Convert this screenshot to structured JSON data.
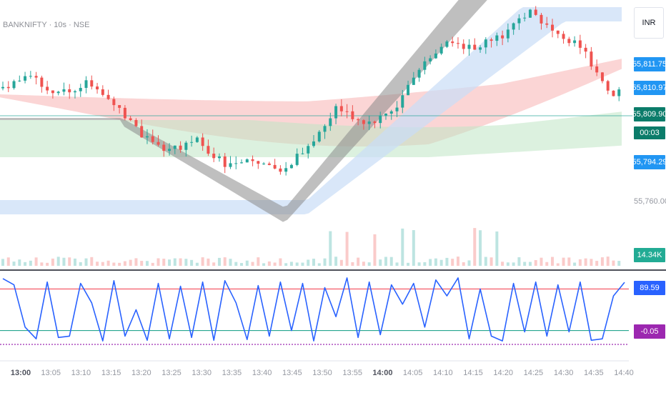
{
  "header": {
    "title": "BANKNIFTY · 10s · NSE"
  },
  "currency": "INR",
  "price_labels": [
    {
      "text": "55,811.75",
      "bg": "#2196f3"
    },
    {
      "text": "55,810.97",
      "bg": "#2196f3"
    },
    {
      "text": "55,809.90",
      "bg": "#0b7c6a"
    },
    {
      "text": "00:03",
      "bg": "#0b7c6a"
    },
    {
      "text": "55,794.29",
      "bg": "#2196f3"
    }
  ],
  "price_scale_text": "55,760.00",
  "volume_label": {
    "text": "14.34K",
    "bg": "#22ab94"
  },
  "osc_labels": [
    {
      "text": "89.59",
      "bg": "#2962ff"
    },
    {
      "text": "-0.05",
      "bg": "#9c27b0"
    }
  ],
  "time_axis": [
    "13:00",
    "13:05",
    "13:10",
    "13:15",
    "13:20",
    "13:25",
    "13:30",
    "13:35",
    "13:40",
    "13:45",
    "13:50",
    "13:55",
    "14:00",
    "14:05",
    "14:10",
    "14:15",
    "14:20",
    "14:25",
    "14:30",
    "14:35",
    "14:40"
  ],
  "colors": {
    "up": "#26a69a",
    "down": "#ef5350",
    "osc_line": "#2962ff",
    "overbought": "#f23645",
    "oversold": "#089981",
    "band_red": "#f7b3b3",
    "band_green": "#bfe5c5",
    "band_blue": "#c9ddf7",
    "band_grey": "#8a8a8a"
  },
  "chart_data": {
    "type": "candlestick",
    "symbol": "BANKNIFTY",
    "interval": "10s",
    "exchange": "NSE",
    "ylim": [
      55740,
      55830
    ],
    "last_price": 55809.9,
    "close_path": [
      [
        0,
        55802
      ],
      [
        5,
        55806
      ],
      [
        10,
        55800
      ],
      [
        15,
        55804
      ],
      [
        20,
        55796
      ],
      [
        25,
        55786
      ],
      [
        30,
        55780
      ],
      [
        35,
        55784
      ],
      [
        40,
        55776
      ],
      [
        45,
        55778
      ],
      [
        50,
        55772
      ],
      [
        55,
        55782
      ],
      [
        60,
        55795
      ],
      [
        65,
        55790
      ],
      [
        70,
        55793
      ],
      [
        75,
        55808
      ],
      [
        80,
        55818
      ],
      [
        85,
        55816
      ],
      [
        90,
        55820
      ],
      [
        95,
        55828
      ],
      [
        100,
        55822
      ],
      [
        105,
        55814
      ],
      [
        110,
        55798
      ],
      [
        112,
        55806
      ]
    ],
    "oscillator": {
      "levels": {
        "overbought": 80,
        "oversold": 20,
        "bottom": 0
      },
      "last_value": 89.59,
      "ref_value": -0.05,
      "path": [
        [
          0,
          95
        ],
        [
          2,
          86
        ],
        [
          4,
          25
        ],
        [
          6,
          8
        ],
        [
          8,
          90
        ],
        [
          10,
          10
        ],
        [
          12,
          12
        ],
        [
          14,
          88
        ],
        [
          16,
          60
        ],
        [
          18,
          5
        ],
        [
          20,
          92
        ],
        [
          22,
          12
        ],
        [
          24,
          50
        ],
        [
          26,
          6
        ],
        [
          28,
          88
        ],
        [
          30,
          8
        ],
        [
          32,
          84
        ],
        [
          34,
          10
        ],
        [
          36,
          90
        ],
        [
          38,
          6
        ],
        [
          40,
          92
        ],
        [
          42,
          60
        ],
        [
          44,
          7
        ],
        [
          46,
          85
        ],
        [
          48,
          12
        ],
        [
          50,
          90
        ],
        [
          52,
          20
        ],
        [
          54,
          88
        ],
        [
          56,
          5
        ],
        [
          58,
          82
        ],
        [
          60,
          40
        ],
        [
          62,
          96
        ],
        [
          64,
          10
        ],
        [
          66,
          90
        ],
        [
          68,
          14
        ],
        [
          70,
          86
        ],
        [
          72,
          58
        ],
        [
          74,
          88
        ],
        [
          76,
          25
        ],
        [
          78,
          93
        ],
        [
          80,
          70
        ],
        [
          82,
          96
        ],
        [
          84,
          8
        ],
        [
          86,
          80
        ],
        [
          88,
          12
        ],
        [
          90,
          5
        ],
        [
          92,
          88
        ],
        [
          94,
          18
        ],
        [
          96,
          90
        ],
        [
          98,
          12
        ],
        [
          100,
          86
        ],
        [
          102,
          18
        ],
        [
          104,
          90
        ],
        [
          106,
          6
        ],
        [
          108,
          8
        ],
        [
          110,
          70
        ],
        [
          112,
          89.59
        ]
      ]
    }
  }
}
